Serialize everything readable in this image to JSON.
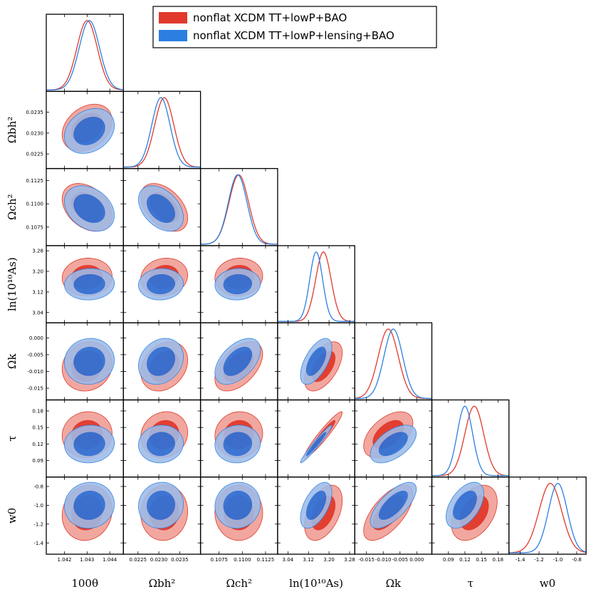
{
  "chart_data": {
    "type": "triangle-corner-plot",
    "legend_position": "top-right",
    "series": [
      {
        "name": "nonflat XCDM TT+lowP+BAO",
        "color": "#e0392b",
        "light": "#f0a29a"
      },
      {
        "name": "nonflat XCDM TT+lowP+lensing+BAO",
        "color": "#2b7fe0",
        "light": "#9dbbe8"
      }
    ],
    "params": [
      {
        "key": "theta",
        "label": "100θ",
        "min": 1.0412,
        "max": 1.0446,
        "ticks": [
          1.042,
          1.043,
          1.044
        ],
        "tick_labels": [
          "1.042",
          "1.043",
          "1.044"
        ]
      },
      {
        "key": "ombh2",
        "label": "Ωbh²",
        "min": 0.02215,
        "max": 0.024,
        "ticks": [
          0.0225,
          0.023,
          0.0235
        ],
        "tick_labels": [
          "0.0225",
          "0.0230",
          "0.0235"
        ]
      },
      {
        "key": "omch2",
        "label": "Ωch²",
        "min": 0.1055,
        "max": 0.1138,
        "ticks": [
          0.1075,
          0.11,
          0.1125
        ],
        "tick_labels": [
          "0.1075",
          "0.1100",
          "0.1125"
        ]
      },
      {
        "key": "logA",
        "label": "ln(10¹⁰As)",
        "min": 3.0,
        "max": 3.3,
        "ticks": [
          3.04,
          3.12,
          3.2,
          3.28
        ],
        "tick_labels": [
          "3.04",
          "3.12",
          "3.20",
          "3.28"
        ]
      },
      {
        "key": "omk",
        "label": "Ωk",
        "min": -0.0185,
        "max": 0.0045,
        "ticks": [
          -0.015,
          -0.01,
          -0.005,
          0.0
        ],
        "tick_labels": [
          "-0.015",
          "-0.010",
          "-0.005",
          "0.000"
        ]
      },
      {
        "key": "tau",
        "label": "τ",
        "min": 0.06,
        "max": 0.2,
        "ticks": [
          0.09,
          0.12,
          0.15,
          0.18
        ],
        "tick_labels": [
          "0.09",
          "0.12",
          "0.15",
          "0.18"
        ]
      },
      {
        "key": "w0",
        "label": "w0",
        "min": -1.52,
        "max": -0.7,
        "ticks": [
          -1.4,
          -1.2,
          -1.0,
          -0.8
        ],
        "tick_labels": [
          "-1.4",
          "-1.2",
          "-1.0",
          "-0.8"
        ]
      }
    ],
    "y_axis_labels": [
      "Ωbh²",
      "Ωch²",
      "ln(10¹⁰As)",
      "Ωk",
      "τ",
      "w0"
    ],
    "posteriors": [
      {
        "mean": [
          1.043,
          0.02313,
          0.10962,
          3.178,
          -0.0085,
          0.137,
          -1.08
        ],
        "sd": [
          0.00045,
          0.00023,
          0.00105,
          0.03,
          0.003,
          0.017,
          0.12
        ]
      },
      {
        "mean": [
          1.0431,
          0.02305,
          0.1095,
          3.15,
          -0.007,
          0.12,
          -1.0
        ],
        "sd": [
          0.00045,
          0.00022,
          0.001,
          0.025,
          0.0028,
          0.014,
          0.1
        ]
      }
    ],
    "correlations": [
      [
        [
          1,
          0.3,
          -0.35,
          0.05,
          0.1,
          0.05,
          0.1
        ],
        [
          0.3,
          1,
          -0.45,
          0.1,
          0.25,
          0.1,
          0.05
        ],
        [
          -0.35,
          -0.45,
          1,
          0.05,
          0.5,
          0.05,
          0.0
        ],
        [
          0.05,
          0.1,
          0.05,
          1,
          0.55,
          0.95,
          0.45
        ],
        [
          0.1,
          0.25,
          0.5,
          0.55,
          1,
          0.5,
          0.65
        ],
        [
          0.05,
          0.1,
          0.05,
          0.95,
          0.5,
          1,
          0.4
        ],
        [
          0.1,
          0.05,
          0.0,
          0.45,
          0.65,
          0.4,
          1
        ]
      ],
      [
        [
          1,
          0.25,
          -0.3,
          0.05,
          0.05,
          0.05,
          0.05
        ],
        [
          0.25,
          1,
          -0.4,
          0.05,
          0.2,
          0.05,
          0.05
        ],
        [
          -0.3,
          -0.4,
          1,
          0.05,
          0.5,
          0.05,
          0.05
        ],
        [
          0.05,
          0.05,
          0.05,
          1,
          0.6,
          0.97,
          0.55
        ],
        [
          0.05,
          0.2,
          0.5,
          0.6,
          1,
          0.55,
          0.7
        ],
        [
          0.05,
          0.05,
          0.05,
          0.97,
          0.55,
          1,
          0.5
        ],
        [
          0.05,
          0.05,
          0.05,
          0.55,
          0.7,
          0.5,
          1
        ]
      ]
    ]
  }
}
